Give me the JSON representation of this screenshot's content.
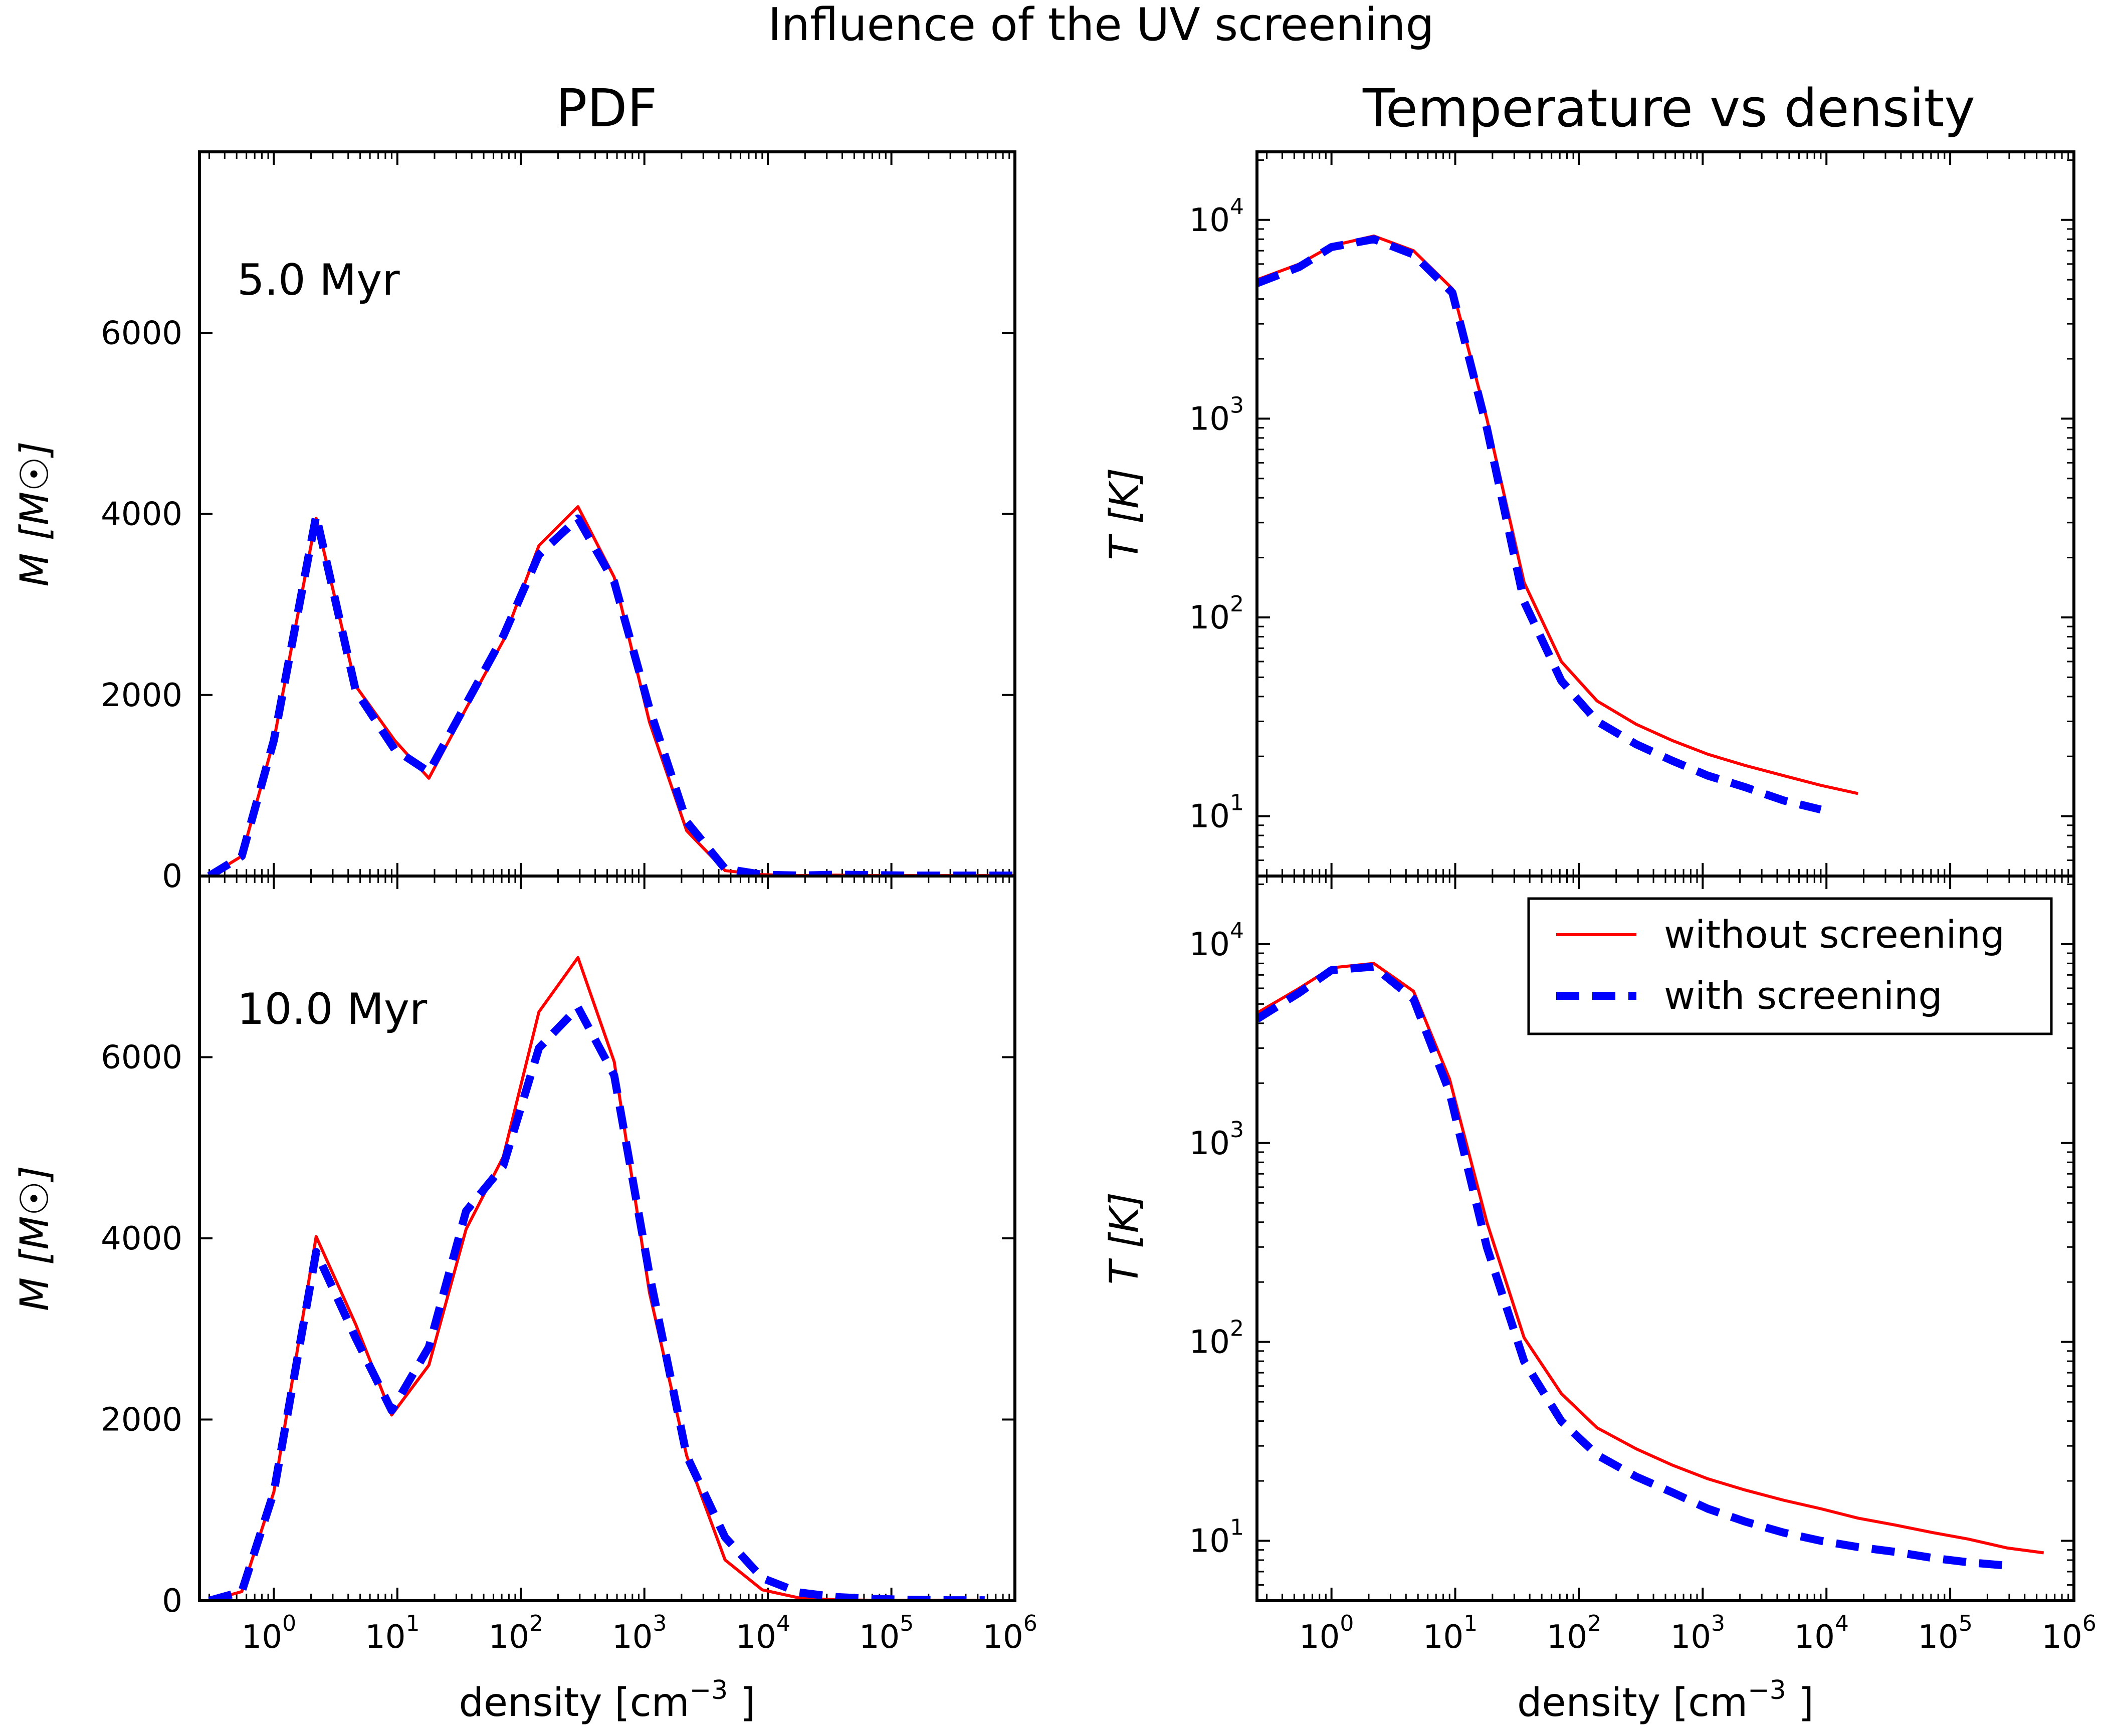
{
  "figure": {
    "suptitle": "Influence of the UV screening",
    "col_titles": [
      "PDF",
      "Temperature vs density"
    ]
  },
  "chart_data": [
    {
      "id": "pdf-5myr",
      "type": "line",
      "annotation": "5.0 Myr",
      "xlabel": "density [cm",
      "xlabel_sup": "−3",
      "xlabel_end": "]",
      "ylabel": "M [M☉]",
      "xscale": "log",
      "xlim": [
        0.25,
        1000000
      ],
      "ylim": [
        0,
        8000
      ],
      "yticks": [
        0,
        2000,
        4000,
        6000
      ],
      "xticks": [
        1,
        10,
        100,
        1000,
        10000,
        100000,
        1000000
      ],
      "series": [
        {
          "name": "without screening",
          "color": "#ff0000",
          "x": [
            0.3,
            0.55,
            1.0,
            2.2,
            4.6,
            9.5,
            18,
            36,
            72,
            140,
            290,
            570,
            1100,
            2200,
            4500,
            9000,
            18000,
            36000,
            72000,
            140000,
            290000,
            570000,
            1000000
          ],
          "y": [
            0,
            220,
            1500,
            3950,
            2100,
            1500,
            1080,
            1850,
            2600,
            3650,
            4080,
            3300,
            1700,
            500,
            60,
            15,
            5,
            10,
            5,
            5,
            5,
            5,
            5
          ]
        },
        {
          "name": "with screening",
          "color": "#0000ff",
          "x": [
            0.3,
            0.55,
            1.0,
            2.2,
            4.6,
            9.5,
            18,
            36,
            72,
            140,
            290,
            570,
            1100,
            2200,
            4500,
            9000,
            18000,
            36000,
            72000,
            140000,
            290000,
            570000,
            1000000
          ],
          "y": [
            0,
            220,
            1500,
            3980,
            2050,
            1400,
            1150,
            1900,
            2650,
            3550,
            3950,
            3250,
            1850,
            600,
            80,
            15,
            5,
            15,
            10,
            5,
            5,
            5,
            5
          ]
        }
      ]
    },
    {
      "id": "pdf-10myr",
      "type": "line",
      "annotation": "10.0 Myr",
      "xlabel": "density [cm",
      "xlabel_sup": "−3",
      "xlabel_end": "]",
      "ylabel": "M [M☉]",
      "xscale": "log",
      "xlim": [
        0.25,
        1000000
      ],
      "ylim": [
        0,
        8000
      ],
      "yticks": [
        0,
        2000,
        4000,
        6000
      ],
      "xticks": [
        1,
        10,
        100,
        1000,
        10000,
        100000,
        1000000
      ],
      "xtick_labels": [
        "10",
        "10",
        "10",
        "10",
        "10",
        "10",
        "10"
      ],
      "xtick_exps": [
        "0",
        "1",
        "2",
        "3",
        "4",
        "5",
        "6"
      ],
      "series": [
        {
          "name": "without screening",
          "color": "#ff0000",
          "x": [
            0.3,
            0.55,
            1.0,
            2.2,
            4.6,
            9.0,
            18,
            36,
            72,
            140,
            290,
            570,
            1100,
            2200,
            4500,
            9000,
            18000,
            36000,
            72000,
            140000,
            290000,
            570000
          ],
          "y": [
            0,
            100,
            1200,
            4020,
            3050,
            2050,
            2600,
            4100,
            4900,
            6500,
            7100,
            5950,
            3400,
            1600,
            450,
            120,
            30,
            10,
            5,
            5,
            5,
            5
          ]
        },
        {
          "name": "with screening",
          "color": "#0000ff",
          "x": [
            0.3,
            0.55,
            1.0,
            2.2,
            4.6,
            9.0,
            18,
            36,
            72,
            140,
            290,
            570,
            1100,
            2200,
            4500,
            9000,
            18000,
            36000,
            72000,
            140000,
            290000,
            570000
          ],
          "y": [
            0,
            100,
            1200,
            3850,
            2900,
            2100,
            2800,
            4300,
            4800,
            6100,
            6550,
            5800,
            3600,
            1600,
            700,
            250,
            90,
            40,
            20,
            10,
            5,
            5
          ]
        }
      ]
    },
    {
      "id": "temp-5myr",
      "type": "line",
      "xlabel": "density [cm",
      "xlabel_sup": "−3",
      "xlabel_end": "]",
      "ylabel": "T [K]",
      "xscale": "log",
      "yscale": "log",
      "xlim": [
        0.25,
        1000000
      ],
      "ylim": [
        5,
        22000
      ],
      "yticks": [
        10,
        100,
        1000,
        10000
      ],
      "ytick_labels": [
        "10",
        "10",
        "10",
        "10"
      ],
      "ytick_exps": [
        "1",
        "2",
        "3",
        "4"
      ],
      "series": [
        {
          "name": "without screening",
          "color": "#ff0000",
          "x": [
            0.25,
            0.55,
            1.0,
            2.2,
            4.6,
            9.5,
            18,
            36,
            72,
            140,
            290,
            570,
            1100,
            2200,
            4500,
            9000,
            18000
          ],
          "y": [
            5000,
            6000,
            7400,
            8300,
            7000,
            4500,
            1000,
            150,
            60,
            38,
            29,
            24,
            20.5,
            18,
            16,
            14.3,
            13
          ]
        },
        {
          "name": "with screening",
          "color": "#0000ff",
          "x": [
            0.25,
            0.55,
            1.0,
            2.2,
            4.6,
            9.5,
            18,
            36,
            72,
            140,
            290,
            570,
            1100,
            2200,
            4500,
            9000
          ],
          "y": [
            4800,
            5800,
            7300,
            8000,
            6700,
            4300,
            900,
            120,
            48,
            30,
            23,
            19,
            16,
            14,
            12,
            10.8
          ]
        }
      ]
    },
    {
      "id": "temp-10myr",
      "type": "line",
      "xlabel": "density [cm",
      "xlabel_sup": "−3",
      "xlabel_end": "]",
      "ylabel": "T [K]",
      "xscale": "log",
      "yscale": "log",
      "xlim": [
        0.25,
        1000000
      ],
      "ylim": [
        5,
        22000
      ],
      "yticks": [
        10,
        100,
        1000,
        10000
      ],
      "ytick_labels": [
        "10",
        "10",
        "10",
        "10"
      ],
      "ytick_exps": [
        "1",
        "2",
        "3",
        "4"
      ],
      "xticks": [
        1,
        10,
        100,
        1000,
        10000,
        100000,
        1000000
      ],
      "xtick_labels": [
        "10",
        "10",
        "10",
        "10",
        "10",
        "10",
        "10"
      ],
      "xtick_exps": [
        "0",
        "1",
        "2",
        "3",
        "4",
        "5",
        "6"
      ],
      "legend": {
        "position": "upper right",
        "entries": [
          "without screening",
          "with screening"
        ]
      },
      "series": [
        {
          "name": "without screening",
          "color": "#ff0000",
          "x": [
            0.25,
            0.55,
            1.0,
            2.2,
            4.6,
            9.0,
            18,
            36,
            72,
            140,
            290,
            570,
            1100,
            2200,
            4500,
            9000,
            18000,
            36000,
            72000,
            140000,
            290000,
            570000
          ],
          "y": [
            4500,
            6000,
            7600,
            8000,
            5800,
            2100,
            400,
            105,
            55,
            37,
            29,
            24,
            20.5,
            18,
            16,
            14.5,
            13,
            12,
            11,
            10.2,
            9.2,
            8.7
          ]
        },
        {
          "name": "with screening",
          "color": "#0000ff",
          "x": [
            0.25,
            0.55,
            1.0,
            2.2,
            4.6,
            9.0,
            18,
            36,
            72,
            140,
            290,
            570,
            1100,
            2200,
            4500,
            9000,
            18000,
            36000,
            72000,
            140000,
            290000
          ],
          "y": [
            4200,
            5700,
            7400,
            7700,
            5300,
            1800,
            300,
            80,
            40,
            27,
            21,
            17.5,
            14.5,
            12.5,
            11,
            10,
            9.3,
            8.8,
            8.2,
            7.8,
            7.5
          ]
        }
      ]
    }
  ]
}
